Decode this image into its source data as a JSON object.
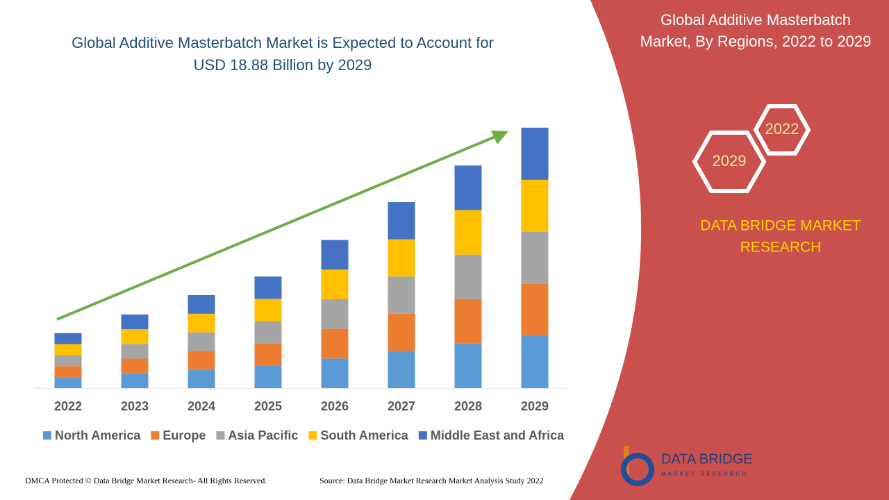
{
  "chart_data": {
    "type": "stacked-bar",
    "title_lines": [
      "Global Additive Masterbatch Market is Expected to Account for",
      "USD 18.88 Billion by 2029"
    ],
    "categories": [
      "2022",
      "2023",
      "2024",
      "2025",
      "2026",
      "2027",
      "2028",
      "2029"
    ],
    "series": [
      {
        "name": "North America",
        "color": "#5b9bd5",
        "values": [
          0.8,
          1.07,
          1.35,
          1.62,
          2.15,
          2.7,
          3.23,
          3.78
        ]
      },
      {
        "name": "Europe",
        "color": "#ed7d31",
        "values": [
          0.8,
          1.07,
          1.35,
          1.62,
          2.15,
          2.7,
          3.23,
          3.78
        ]
      },
      {
        "name": "Asia Pacific",
        "color": "#a5a5a5",
        "values": [
          0.8,
          1.07,
          1.35,
          1.62,
          2.15,
          2.7,
          3.23,
          3.78
        ]
      },
      {
        "name": "South America",
        "color": "#ffc000",
        "values": [
          0.8,
          1.07,
          1.35,
          1.62,
          2.15,
          2.7,
          3.23,
          3.78
        ]
      },
      {
        "name": "Middle East and Africa",
        "color": "#4472c4",
        "values": [
          0.8,
          1.07,
          1.35,
          1.62,
          2.15,
          2.7,
          3.23,
          3.78
        ]
      }
    ],
    "ylim": [
      0,
      20
    ]
  },
  "side_panel": {
    "title_lines": [
      "Global Additive Masterbatch",
      "Market, By Regions, 2022 to 2029"
    ],
    "hex_top": "2022",
    "hex_bottom": "2029",
    "brand_lines": [
      "DATA BRIDGE MARKET",
      "RESEARCH"
    ]
  },
  "logo": {
    "name": "DATA BRIDGE",
    "tagline": "MARKET RESEARCH"
  },
  "footer": {
    "left": "DMCA Protected © Data Bridge Market Research- All Rights Reserved.",
    "right": "Source: Data Bridge Market Research Market Analysis Study 2022"
  }
}
